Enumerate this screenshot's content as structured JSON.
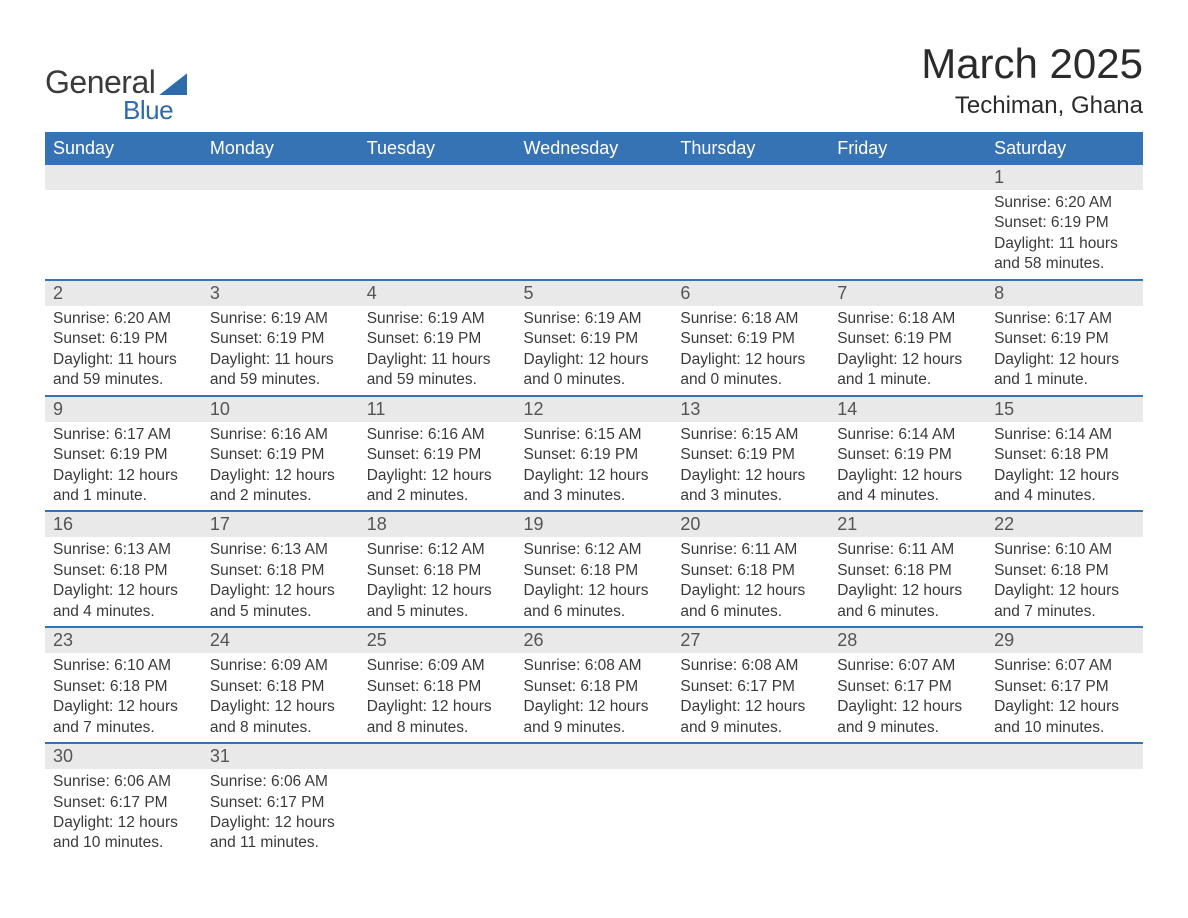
{
  "brand": {
    "word1": "General",
    "word2": "Blue"
  },
  "header": {
    "month_year": "March 2025",
    "location": "Techiman, Ghana"
  },
  "colors": {
    "header_bg": "#3573b5",
    "header_text": "#ffffff",
    "daynum_bg": "#e9e9e9",
    "row_border": "#3573b5",
    "body_text": "#353535",
    "logo_accent": "#2f6aaa"
  },
  "typography": {
    "month_title_fontsize": 42,
    "location_fontsize": 24,
    "dayheader_fontsize": 18,
    "daynum_fontsize": 18,
    "detail_fontsize": 15.5
  },
  "calendar": {
    "type": "table",
    "day_headers": [
      "Sunday",
      "Monday",
      "Tuesday",
      "Wednesday",
      "Thursday",
      "Friday",
      "Saturday"
    ],
    "weeks": [
      [
        null,
        null,
        null,
        null,
        null,
        null,
        {
          "n": "1",
          "sr": "Sunrise: 6:20 AM",
          "ss": "Sunset: 6:19 PM",
          "d1": "Daylight: 11 hours",
          "d2": "and 58 minutes."
        }
      ],
      [
        {
          "n": "2",
          "sr": "Sunrise: 6:20 AM",
          "ss": "Sunset: 6:19 PM",
          "d1": "Daylight: 11 hours",
          "d2": "and 59 minutes."
        },
        {
          "n": "3",
          "sr": "Sunrise: 6:19 AM",
          "ss": "Sunset: 6:19 PM",
          "d1": "Daylight: 11 hours",
          "d2": "and 59 minutes."
        },
        {
          "n": "4",
          "sr": "Sunrise: 6:19 AM",
          "ss": "Sunset: 6:19 PM",
          "d1": "Daylight: 11 hours",
          "d2": "and 59 minutes."
        },
        {
          "n": "5",
          "sr": "Sunrise: 6:19 AM",
          "ss": "Sunset: 6:19 PM",
          "d1": "Daylight: 12 hours",
          "d2": "and 0 minutes."
        },
        {
          "n": "6",
          "sr": "Sunrise: 6:18 AM",
          "ss": "Sunset: 6:19 PM",
          "d1": "Daylight: 12 hours",
          "d2": "and 0 minutes."
        },
        {
          "n": "7",
          "sr": "Sunrise: 6:18 AM",
          "ss": "Sunset: 6:19 PM",
          "d1": "Daylight: 12 hours",
          "d2": "and 1 minute."
        },
        {
          "n": "8",
          "sr": "Sunrise: 6:17 AM",
          "ss": "Sunset: 6:19 PM",
          "d1": "Daylight: 12 hours",
          "d2": "and 1 minute."
        }
      ],
      [
        {
          "n": "9",
          "sr": "Sunrise: 6:17 AM",
          "ss": "Sunset: 6:19 PM",
          "d1": "Daylight: 12 hours",
          "d2": "and 1 minute."
        },
        {
          "n": "10",
          "sr": "Sunrise: 6:16 AM",
          "ss": "Sunset: 6:19 PM",
          "d1": "Daylight: 12 hours",
          "d2": "and 2 minutes."
        },
        {
          "n": "11",
          "sr": "Sunrise: 6:16 AM",
          "ss": "Sunset: 6:19 PM",
          "d1": "Daylight: 12 hours",
          "d2": "and 2 minutes."
        },
        {
          "n": "12",
          "sr": "Sunrise: 6:15 AM",
          "ss": "Sunset: 6:19 PM",
          "d1": "Daylight: 12 hours",
          "d2": "and 3 minutes."
        },
        {
          "n": "13",
          "sr": "Sunrise: 6:15 AM",
          "ss": "Sunset: 6:19 PM",
          "d1": "Daylight: 12 hours",
          "d2": "and 3 minutes."
        },
        {
          "n": "14",
          "sr": "Sunrise: 6:14 AM",
          "ss": "Sunset: 6:19 PM",
          "d1": "Daylight: 12 hours",
          "d2": "and 4 minutes."
        },
        {
          "n": "15",
          "sr": "Sunrise: 6:14 AM",
          "ss": "Sunset: 6:18 PM",
          "d1": "Daylight: 12 hours",
          "d2": "and 4 minutes."
        }
      ],
      [
        {
          "n": "16",
          "sr": "Sunrise: 6:13 AM",
          "ss": "Sunset: 6:18 PM",
          "d1": "Daylight: 12 hours",
          "d2": "and 4 minutes."
        },
        {
          "n": "17",
          "sr": "Sunrise: 6:13 AM",
          "ss": "Sunset: 6:18 PM",
          "d1": "Daylight: 12 hours",
          "d2": "and 5 minutes."
        },
        {
          "n": "18",
          "sr": "Sunrise: 6:12 AM",
          "ss": "Sunset: 6:18 PM",
          "d1": "Daylight: 12 hours",
          "d2": "and 5 minutes."
        },
        {
          "n": "19",
          "sr": "Sunrise: 6:12 AM",
          "ss": "Sunset: 6:18 PM",
          "d1": "Daylight: 12 hours",
          "d2": "and 6 minutes."
        },
        {
          "n": "20",
          "sr": "Sunrise: 6:11 AM",
          "ss": "Sunset: 6:18 PM",
          "d1": "Daylight: 12 hours",
          "d2": "and 6 minutes."
        },
        {
          "n": "21",
          "sr": "Sunrise: 6:11 AM",
          "ss": "Sunset: 6:18 PM",
          "d1": "Daylight: 12 hours",
          "d2": "and 6 minutes."
        },
        {
          "n": "22",
          "sr": "Sunrise: 6:10 AM",
          "ss": "Sunset: 6:18 PM",
          "d1": "Daylight: 12 hours",
          "d2": "and 7 minutes."
        }
      ],
      [
        {
          "n": "23",
          "sr": "Sunrise: 6:10 AM",
          "ss": "Sunset: 6:18 PM",
          "d1": "Daylight: 12 hours",
          "d2": "and 7 minutes."
        },
        {
          "n": "24",
          "sr": "Sunrise: 6:09 AM",
          "ss": "Sunset: 6:18 PM",
          "d1": "Daylight: 12 hours",
          "d2": "and 8 minutes."
        },
        {
          "n": "25",
          "sr": "Sunrise: 6:09 AM",
          "ss": "Sunset: 6:18 PM",
          "d1": "Daylight: 12 hours",
          "d2": "and 8 minutes."
        },
        {
          "n": "26",
          "sr": "Sunrise: 6:08 AM",
          "ss": "Sunset: 6:18 PM",
          "d1": "Daylight: 12 hours",
          "d2": "and 9 minutes."
        },
        {
          "n": "27",
          "sr": "Sunrise: 6:08 AM",
          "ss": "Sunset: 6:17 PM",
          "d1": "Daylight: 12 hours",
          "d2": "and 9 minutes."
        },
        {
          "n": "28",
          "sr": "Sunrise: 6:07 AM",
          "ss": "Sunset: 6:17 PM",
          "d1": "Daylight: 12 hours",
          "d2": "and 9 minutes."
        },
        {
          "n": "29",
          "sr": "Sunrise: 6:07 AM",
          "ss": "Sunset: 6:17 PM",
          "d1": "Daylight: 12 hours",
          "d2": "and 10 minutes."
        }
      ],
      [
        {
          "n": "30",
          "sr": "Sunrise: 6:06 AM",
          "ss": "Sunset: 6:17 PM",
          "d1": "Daylight: 12 hours",
          "d2": "and 10 minutes."
        },
        {
          "n": "31",
          "sr": "Sunrise: 6:06 AM",
          "ss": "Sunset: 6:17 PM",
          "d1": "Daylight: 12 hours",
          "d2": "and 11 minutes."
        },
        null,
        null,
        null,
        null,
        null
      ]
    ]
  }
}
